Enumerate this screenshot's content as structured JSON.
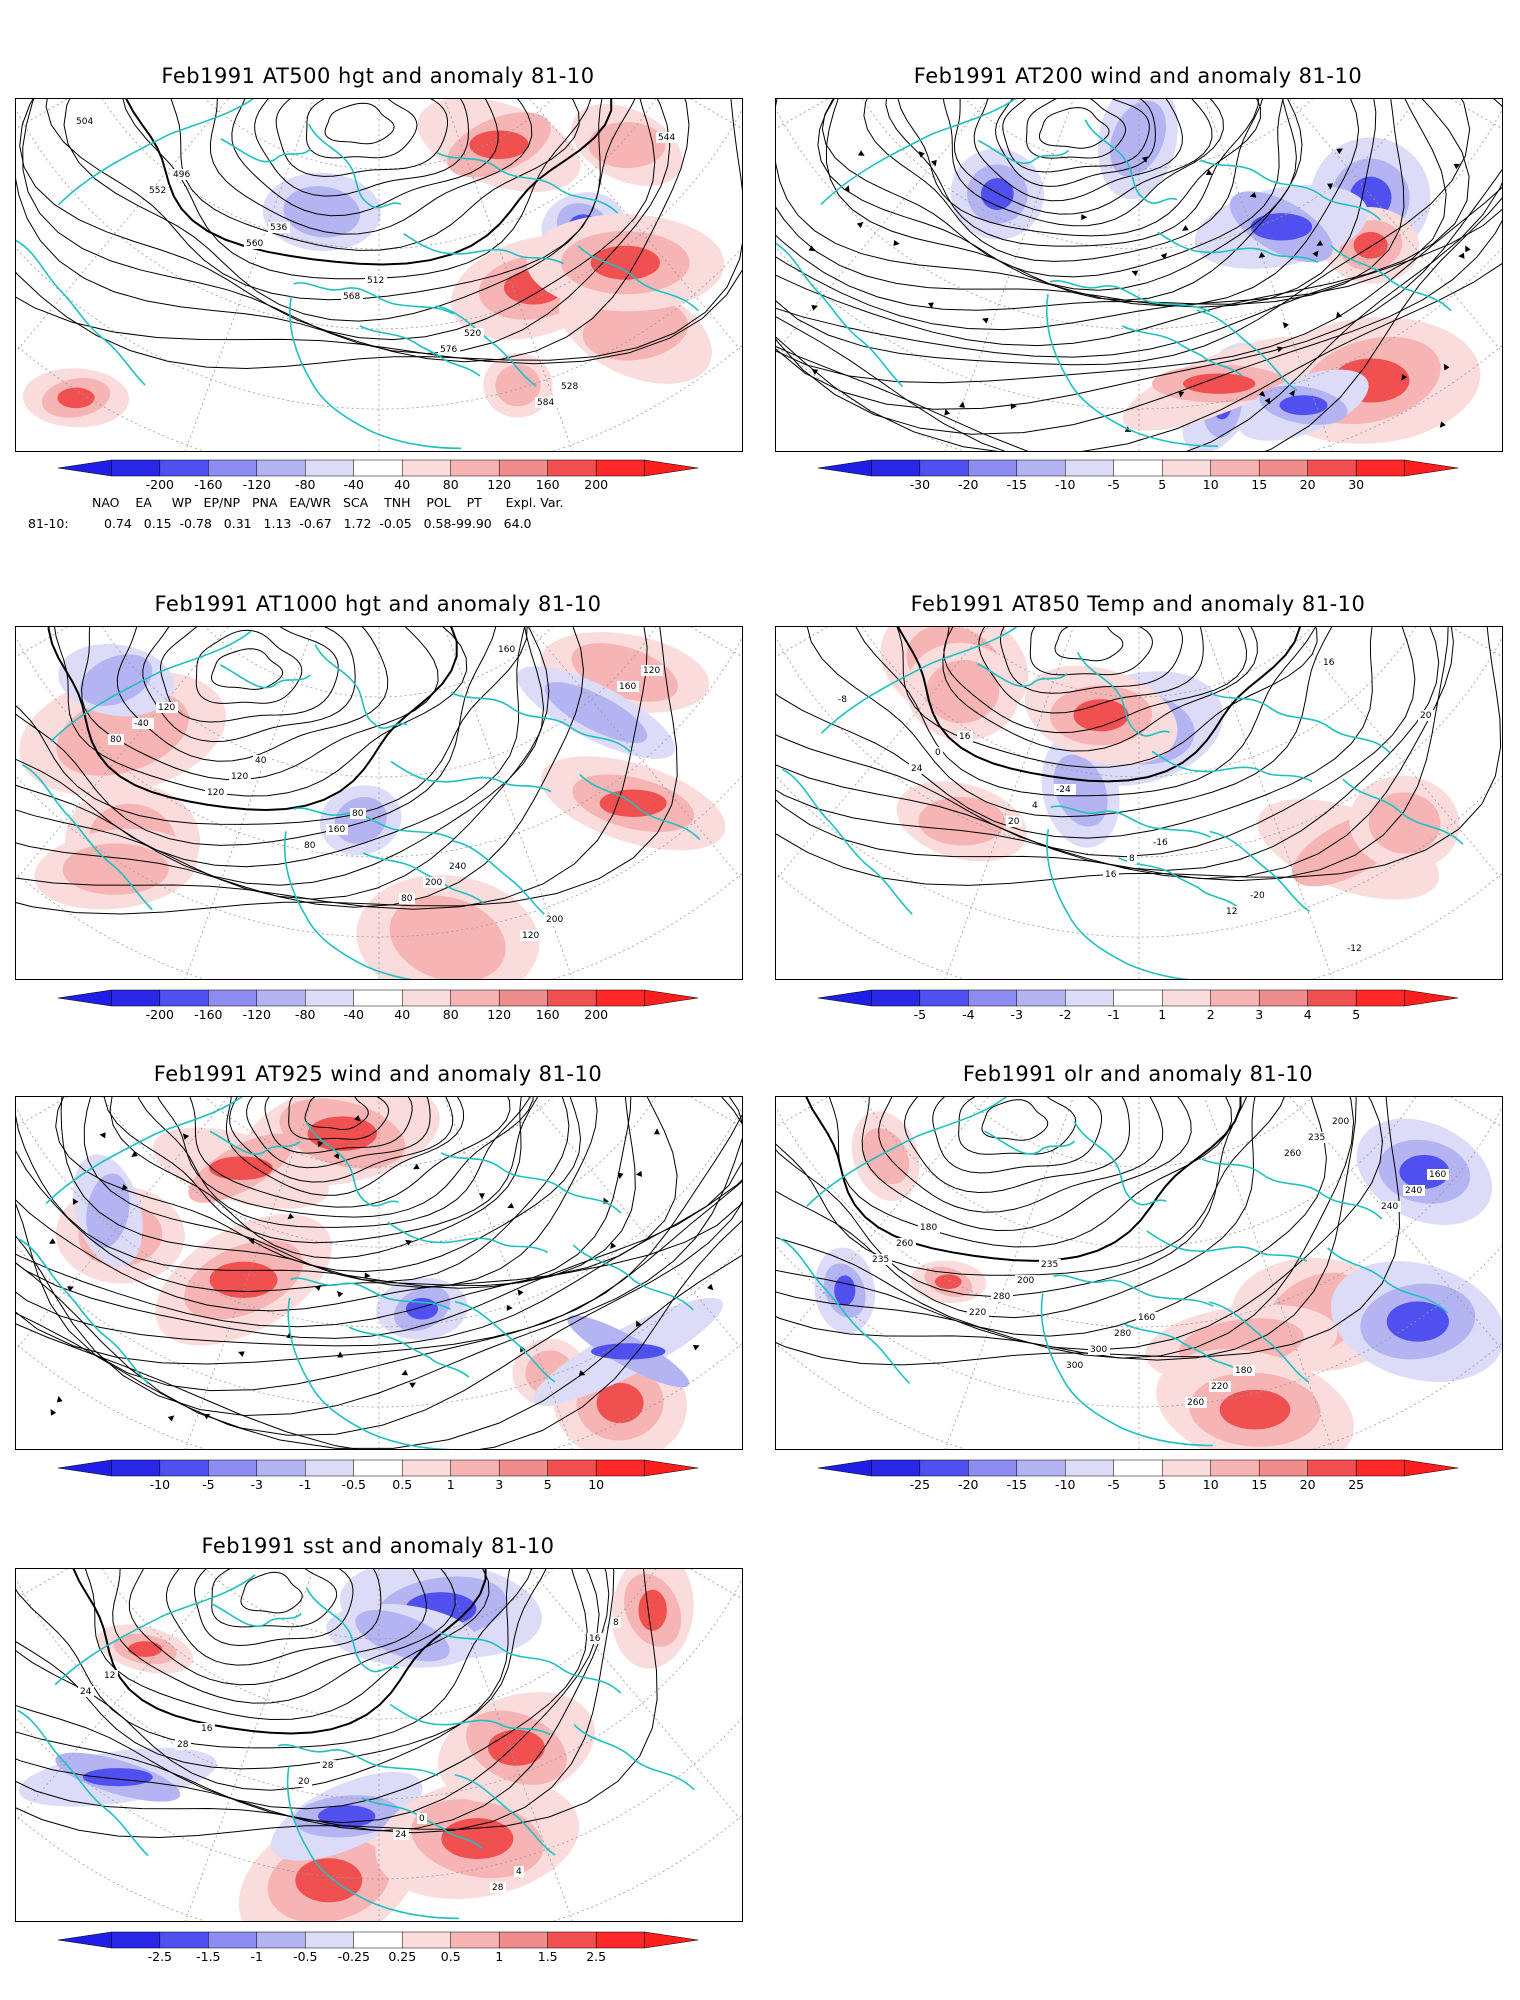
{
  "panels": [
    {
      "id": "p500",
      "title": "Feb1991 AT500 hgt and anomaly 81-10",
      "colorbar": [
        "-200",
        "-160",
        "-120",
        "-80",
        "-40",
        "40",
        "80",
        "120",
        "160",
        "200"
      ],
      "contour_labels": [
        "504",
        "496",
        "536",
        "512",
        "520",
        "528",
        "544",
        "552",
        "560",
        "568",
        "576",
        "584"
      ]
    },
    {
      "id": "p200",
      "title": "Feb1991 AT200 wind and anomaly 81-10",
      "colorbar": [
        "-30",
        "-20",
        "-15",
        "-10",
        "-5",
        "5",
        "10",
        "15",
        "20",
        "30"
      ],
      "contour_labels": []
    },
    {
      "id": "p1000",
      "title": "Feb1991 AT1000 hgt and anomaly 81-10",
      "colorbar": [
        "-200",
        "-160",
        "-120",
        "-80",
        "-40",
        "40",
        "80",
        "120",
        "160",
        "200"
      ],
      "contour_labels": [
        "120",
        "40",
        "80",
        "240",
        "200",
        "120",
        "-40",
        "120",
        "160",
        "200",
        "120",
        "160",
        "80",
        "120",
        "80",
        "80",
        "160"
      ]
    },
    {
      "id": "p850",
      "title": "Feb1991 AT850 Temp and anomaly 81-10",
      "colorbar": [
        "-5",
        "-4",
        "-3",
        "-2",
        "-1",
        "1",
        "2",
        "3",
        "4",
        "5"
      ],
      "contour_labels": [
        "16",
        "-24",
        "-16",
        "-20",
        "-12",
        "-8",
        "0",
        "4",
        "8",
        "12",
        "16",
        "20",
        "24",
        "20",
        "16"
      ]
    },
    {
      "id": "p925",
      "title": "Feb1991 AT925 wind and anomaly 81-10",
      "colorbar": [
        "-10",
        "-5",
        "-3",
        "-1",
        "-0.5",
        "0.5",
        "1",
        "3",
        "5",
        "10"
      ],
      "contour_labels": []
    },
    {
      "id": "polr",
      "title": "Feb1991 olr and anomaly 81-10",
      "colorbar": [
        "-25",
        "-20",
        "-15",
        "-10",
        "-5",
        "5",
        "10",
        "15",
        "20",
        "25"
      ],
      "contour_labels": [
        "235",
        "160",
        "180",
        "200",
        "160",
        "180",
        "200",
        "280",
        "220",
        "235",
        "240",
        "260",
        "280",
        "300",
        "260",
        "260",
        "240",
        "235",
        "220",
        "300"
      ]
    },
    {
      "id": "psst",
      "title": "Feb1991 sst and anomaly 81-10",
      "colorbar": [
        "-2.5",
        "-1.5",
        "-1",
        "-0.5",
        "-0.25",
        "0.25",
        "0.5",
        "1",
        "1.5",
        "2.5"
      ],
      "contour_labels": [
        "28",
        "0",
        "4",
        "8",
        "12",
        "16",
        "20",
        "24",
        "28",
        "16",
        "24",
        "28"
      ]
    }
  ],
  "indices": {
    "header": "NAO    EA     WP   EP/NP   PNA   EA/WR   SCA    TNH    POL    PT      Expl. Var.",
    "label": "81-10:",
    "values": "0.74   0.15  -0.78   0.31   1.13  -0.67   1.72  -0.05   0.58-99.90   64.0"
  },
  "colors": {
    "coastline": "#20c0c0",
    "contour": "#000000",
    "grid": "#9a9a9a",
    "neg": [
      "#2828e6",
      "#5050f0",
      "#8c8cf2",
      "#b4b4f2",
      "#dcdcf8"
    ],
    "pos": [
      "#fadcdc",
      "#f6b4b4",
      "#f08c8c",
      "#f05050",
      "#ff2828"
    ]
  }
}
